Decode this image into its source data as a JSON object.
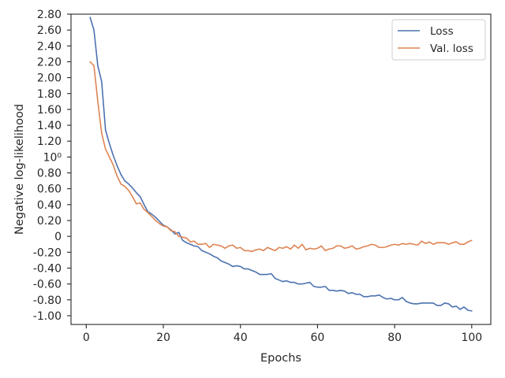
{
  "chart_data": {
    "type": "line",
    "title": "",
    "xlabel": "Epochs",
    "ylabel": "Negative log-likelihood",
    "xlim": [
      -3.95,
      104.95
    ],
    "ylim": [
      -1.11,
      2.8
    ],
    "x_ticks": [
      0,
      20,
      40,
      60,
      80,
      100
    ],
    "x_tick_labels": [
      "0",
      "20",
      "40",
      "60",
      "80",
      "100"
    ],
    "y_ticks": [
      -1.0,
      -0.8,
      -0.6,
      -0.4,
      -0.2,
      0.0,
      0.2,
      0.4,
      0.6,
      0.8,
      1.0,
      1.2,
      1.4,
      1.6,
      1.8,
      2.0,
      2.2,
      2.4,
      2.6,
      2.8
    ],
    "y_tick_labels": [
      "-1.00",
      "-0.80",
      "-0.60",
      "-0.40",
      "-0.20",
      "0",
      "0.20",
      "0.40",
      "0.60",
      "0.80",
      "10⁰",
      "1.20",
      "1.40",
      "1.60",
      "1.80",
      "2.00",
      "2.20",
      "2.40",
      "2.60",
      "2.80"
    ],
    "grid": false,
    "legend_position": "top-right",
    "series": [
      {
        "name": "Loss",
        "color": "#4c72b0",
        "x": [
          1,
          2,
          3,
          4,
          5,
          6,
          7,
          8,
          9,
          10,
          11,
          12,
          13,
          14,
          15,
          16,
          17,
          18,
          19,
          20,
          21,
          22,
          23,
          24,
          25,
          26,
          27,
          28,
          29,
          30,
          31,
          32,
          33,
          34,
          35,
          36,
          37,
          38,
          39,
          40,
          41,
          42,
          43,
          44,
          45,
          46,
          47,
          48,
          49,
          50,
          51,
          52,
          53,
          54,
          55,
          56,
          57,
          58,
          59,
          60,
          61,
          62,
          63,
          64,
          65,
          66,
          67,
          68,
          69,
          70,
          71,
          72,
          73,
          74,
          75,
          76,
          77,
          78,
          79,
          80,
          81,
          82,
          83,
          84,
          85,
          86,
          87,
          88,
          89,
          90,
          91,
          92,
          93,
          94,
          95,
          96,
          97,
          98,
          99,
          100
        ],
        "values": [
          2.76,
          2.6,
          2.15,
          1.95,
          1.34,
          1.17,
          1.02,
          0.89,
          0.78,
          0.7,
          0.66,
          0.61,
          0.55,
          0.5,
          0.4,
          0.31,
          0.28,
          0.24,
          0.19,
          0.14,
          0.12,
          0.08,
          0.03,
          0.05,
          -0.05,
          -0.08,
          -0.1,
          -0.12,
          -0.13,
          -0.18,
          -0.2,
          -0.22,
          -0.25,
          -0.27,
          -0.31,
          -0.33,
          -0.35,
          -0.38,
          -0.37,
          -0.38,
          -0.41,
          -0.41,
          -0.43,
          -0.45,
          -0.48,
          -0.48,
          -0.48,
          -0.47,
          -0.53,
          -0.55,
          -0.57,
          -0.56,
          -0.58,
          -0.58,
          -0.6,
          -0.6,
          -0.59,
          -0.58,
          -0.63,
          -0.64,
          -0.64,
          -0.63,
          -0.68,
          -0.68,
          -0.69,
          -0.68,
          -0.69,
          -0.72,
          -0.71,
          -0.73,
          -0.73,
          -0.76,
          -0.76,
          -0.75,
          -0.75,
          -0.74,
          -0.77,
          -0.79,
          -0.78,
          -0.8,
          -0.8,
          -0.77,
          -0.82,
          -0.84,
          -0.85,
          -0.85,
          -0.84,
          -0.84,
          -0.84,
          -0.84,
          -0.87,
          -0.87,
          -0.84,
          -0.85,
          -0.89,
          -0.88,
          -0.92,
          -0.89,
          -0.93,
          -0.94
        ]
      },
      {
        "name": "Val. loss",
        "color": "#dd8452",
        "x": [
          1,
          2,
          3,
          4,
          5,
          6,
          7,
          8,
          9,
          10,
          11,
          12,
          13,
          14,
          15,
          16,
          17,
          18,
          19,
          20,
          21,
          22,
          23,
          24,
          25,
          26,
          27,
          28,
          29,
          30,
          31,
          32,
          33,
          34,
          35,
          36,
          37,
          38,
          39,
          40,
          41,
          42,
          43,
          44,
          45,
          46,
          47,
          48,
          49,
          50,
          51,
          52,
          53,
          54,
          55,
          56,
          57,
          58,
          59,
          60,
          61,
          62,
          63,
          64,
          65,
          66,
          67,
          68,
          69,
          70,
          71,
          72,
          73,
          74,
          75,
          76,
          77,
          78,
          79,
          80,
          81,
          82,
          83,
          84,
          85,
          86,
          87,
          88,
          89,
          90,
          91,
          92,
          93,
          94,
          95,
          96,
          97,
          98,
          99,
          100
        ],
        "values": [
          2.2,
          2.15,
          1.7,
          1.3,
          1.1,
          1.0,
          0.9,
          0.76,
          0.66,
          0.63,
          0.58,
          0.5,
          0.41,
          0.42,
          0.34,
          0.3,
          0.25,
          0.2,
          0.16,
          0.13,
          0.12,
          0.07,
          0.06,
          0.0,
          -0.01,
          -0.02,
          -0.07,
          -0.06,
          -0.1,
          -0.1,
          -0.09,
          -0.14,
          -0.1,
          -0.11,
          -0.12,
          -0.15,
          -0.12,
          -0.11,
          -0.15,
          -0.14,
          -0.18,
          -0.18,
          -0.19,
          -0.17,
          -0.16,
          -0.18,
          -0.14,
          -0.16,
          -0.18,
          -0.14,
          -0.15,
          -0.13,
          -0.16,
          -0.11,
          -0.15,
          -0.1,
          -0.17,
          -0.15,
          -0.16,
          -0.15,
          -0.12,
          -0.18,
          -0.16,
          -0.15,
          -0.12,
          -0.12,
          -0.15,
          -0.14,
          -0.12,
          -0.16,
          -0.15,
          -0.13,
          -0.12,
          -0.1,
          -0.11,
          -0.14,
          -0.14,
          -0.13,
          -0.11,
          -0.1,
          -0.11,
          -0.09,
          -0.1,
          -0.09,
          -0.1,
          -0.11,
          -0.06,
          -0.09,
          -0.07,
          -0.1,
          -0.08,
          -0.08,
          -0.08,
          -0.1,
          -0.08,
          -0.07,
          -0.1,
          -0.1,
          -0.07,
          -0.05
        ]
      }
    ]
  }
}
